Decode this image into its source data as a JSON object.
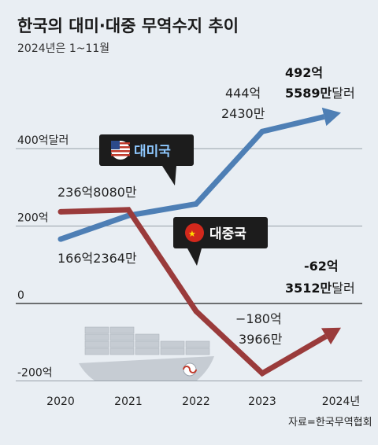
{
  "title": "한국의 대미·대중 무역수지 추이",
  "subtitle": "2024년은 1~11월",
  "source": "자료=한국무역협회",
  "colors": {
    "us": "#4e7fb5",
    "china": "#9a3b3b",
    "badge_bg": "#1c1c1c",
    "us_badge_text": "#8ec8ff",
    "china_badge_text": "#ffffff",
    "ship": "#c6ccd3",
    "grid": "#7d8791",
    "zero_line": "#222222"
  },
  "chart_data": {
    "type": "line",
    "categories": [
      "2020",
      "2021",
      "2022",
      "2023",
      "2024년"
    ],
    "ylim": [
      -200,
      550
    ],
    "y_ticks": [
      {
        "value": 400,
        "label": "400억달러"
      },
      {
        "value": 200,
        "label": "200억"
      },
      {
        "value": 0,
        "label": "0"
      },
      {
        "value": -200,
        "label": "-200억"
      }
    ],
    "series": [
      {
        "name": "대미국",
        "values": [
          166.2,
          227,
          257,
          444.2,
          492.6
        ],
        "color": "#4e7fb5",
        "icon": "us-flag-icon"
      },
      {
        "name": "대중국",
        "values": [
          236.8,
          242,
          -20,
          -180.4,
          -62.4
        ],
        "color": "#9a3b3b",
        "icon": "china-flag-icon"
      }
    ],
    "annotations": {
      "us_2020": "166억2364만",
      "us_2023_line1": "444억",
      "us_2023_line2": "2430만",
      "us_2024_line1": "492억",
      "us_2024_line2_bold": "5589만",
      "us_2024_line2_rest": "달러",
      "cn_2020": "236억8080만",
      "cn_2023_line1": "−180억",
      "cn_2023_line2": "3966만",
      "cn_2024_line1": "-62억",
      "cn_2024_line2_bold": "3512만",
      "cn_2024_line2_rest": "달러"
    }
  }
}
